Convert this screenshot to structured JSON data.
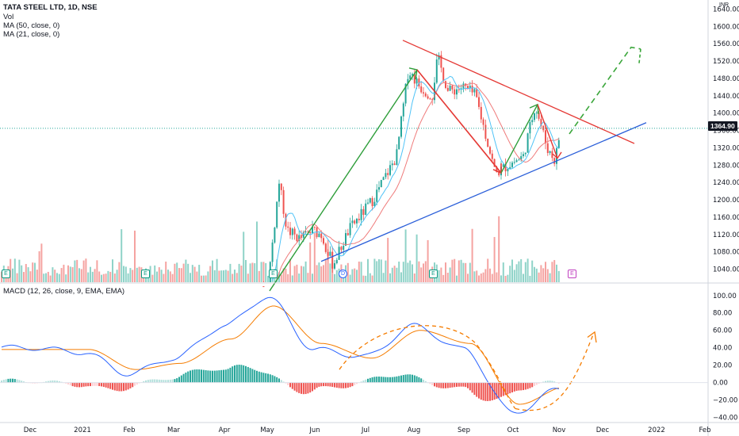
{
  "legend": {
    "symbol": "TATA STEEL LTD, 1D, NSE",
    "vol": "Vol",
    "ma50": "MA (50, close, 0)",
    "ma21": "MA (21, close, 0)",
    "macd": "MACD (12, 26, close, 9, EMA, EMA)"
  },
  "currency": "INR",
  "last_price_label": "1364.90",
  "event_markers": [
    "E",
    "E",
    "E",
    "D",
    "E",
    "E"
  ],
  "colors": {
    "up": "#26a69a",
    "down": "#ef5350",
    "ma50": "#ef7b7b",
    "ma21": "#4fc3f7",
    "macd": "#2962ff",
    "signal": "#f57c00",
    "trend_green": "#2e9e3a",
    "trend_red": "#e53935",
    "trend_blue": "#2b5fd9",
    "arrow_dashed": "#3aa63a",
    "macd_forecast": "#f57c00",
    "last_price": "#131722"
  },
  "chart_data": [
    {
      "type": "candlestick",
      "title": "TATA STEEL LTD, 1D, NSE",
      "x_ticks": [
        "Dec",
        "2021",
        "Feb",
        "Mar",
        "Apr",
        "May",
        "Jun",
        "Jul",
        "Aug",
        "Sep",
        "Oct",
        "Nov",
        "Dec",
        "2022",
        "Feb"
      ],
      "y_ticks": [
        1040,
        1080,
        1120,
        1160,
        1200,
        1240,
        1280,
        1320,
        1360,
        1400,
        1440,
        1480,
        1520,
        1560,
        1600,
        1640
      ],
      "ylim": [
        1010,
        1650
      ],
      "last_price": 1364.9,
      "price_path": [
        {
          "x": "May",
          "y": 990
        },
        {
          "x": "late May",
          "y": 1246
        },
        {
          "x": "Jun",
          "y": 1130
        },
        {
          "x": "mid Jun",
          "y": 1050
        },
        {
          "x": "Jul",
          "y": 1180
        },
        {
          "x": "Aug",
          "y": 1500
        },
        {
          "x": "mid Aug",
          "y": 1530
        },
        {
          "x": "Sep",
          "y": 1450
        },
        {
          "x": "late Sep",
          "y": 1260
        },
        {
          "x": "mid Oct",
          "y": 1420
        },
        {
          "x": "late Oct",
          "y": 1290
        },
        {
          "x": "Nov",
          "y": 1364.9
        }
      ],
      "trendlines": [
        {
          "name": "upper",
          "from": {
            "x": "mid Aug",
            "y": 1568
          },
          "to": {
            "x": "Dec",
            "y": 1330
          }
        },
        {
          "name": "lower",
          "from": {
            "x": "mid Jun",
            "y": 1058
          },
          "to": {
            "x": "Dec",
            "y": 1378
          }
        }
      ],
      "volume": "bars under price, coloured by candle direction"
    },
    {
      "type": "line",
      "title": "MACD (12, 26, close, 9, EMA, EMA)",
      "y_ticks": [
        -40,
        -20,
        0,
        20,
        40,
        60,
        80,
        100
      ],
      "ylim": [
        -45,
        108
      ],
      "series": [
        {
          "name": "MACD",
          "points": [
            {
              "x": "Dec",
              "y": 40
            },
            {
              "x": "2021",
              "y": 35
            },
            {
              "x": "Feb",
              "y": 10
            },
            {
              "x": "Mar",
              "y": 28
            },
            {
              "x": "Apr",
              "y": 65
            },
            {
              "x": "May",
              "y": 98
            },
            {
              "x": "Jun",
              "y": 38
            },
            {
              "x": "Jul",
              "y": 30
            },
            {
              "x": "Aug",
              "y": 65
            },
            {
              "x": "Sep",
              "y": 38
            },
            {
              "x": "Oct",
              "y": -35
            },
            {
              "x": "Nov",
              "y": -8
            }
          ]
        },
        {
          "name": "Signal",
          "points": [
            {
              "x": "Dec",
              "y": 38
            },
            {
              "x": "2021",
              "y": 38
            },
            {
              "x": "Feb",
              "y": 15
            },
            {
              "x": "Mar",
              "y": 22
            },
            {
              "x": "Apr",
              "y": 50
            },
            {
              "x": "May",
              "y": 88
            },
            {
              "x": "Jun",
              "y": 45
            },
            {
              "x": "Jul",
              "y": 28
            },
            {
              "x": "Aug",
              "y": 60
            },
            {
              "x": "Sep",
              "y": 45
            },
            {
              "x": "Oct",
              "y": -25
            },
            {
              "x": "Nov",
              "y": -5
            }
          ]
        }
      ],
      "histogram": "bars around zero, green when MACD above signal, red below"
    }
  ]
}
